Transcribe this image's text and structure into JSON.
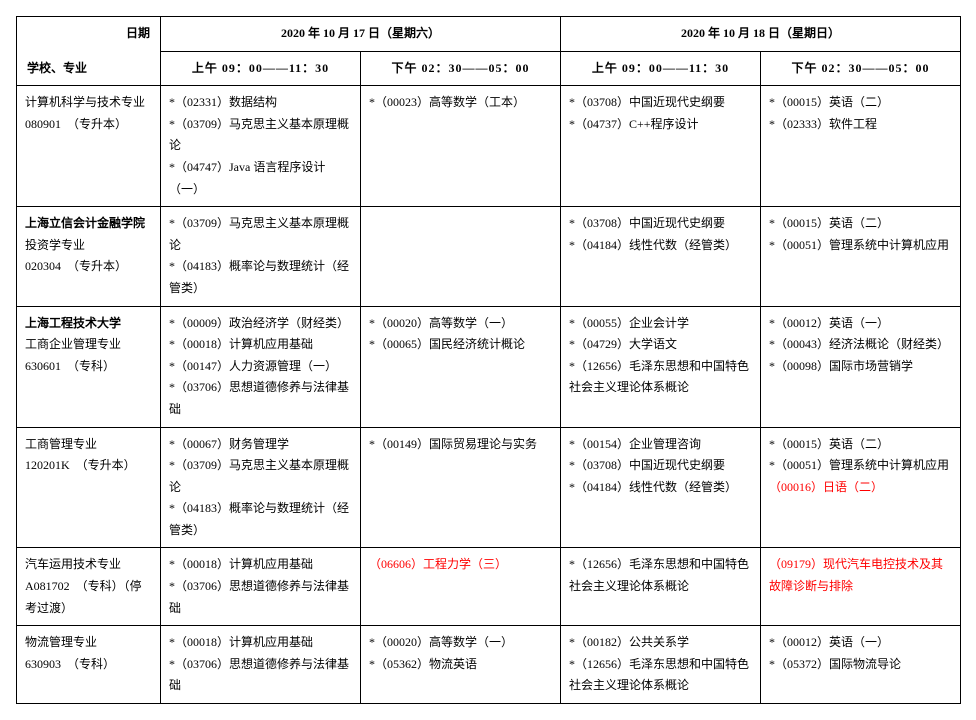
{
  "header": {
    "corner_top": "日期",
    "corner_bottom": "学校、专业",
    "day1": "2020 年 10 月 17 日（星期六）",
    "day2": "2020 年 10 月 18 日（星期日）",
    "slot1": "上午 09：00——11：30",
    "slot2": "下午 02：30——05：00",
    "slot3": "上午 09：00——11：30",
    "slot4": "下午 02：30——05：00"
  },
  "rows": [
    {
      "major": [
        {
          "text": "计算机科学与技术专业",
          "bold": false
        },
        {
          "text": "080901　（专升本）",
          "bold": false
        }
      ],
      "cells": [
        [
          {
            "text": "*（02331）数据结构"
          },
          {
            "text": "*（03709）马克思主义基本原理概论"
          },
          {
            "text": "*（04747）Java 语言程序设计（一）"
          }
        ],
        [
          {
            "text": "*（00023）高等数学（工本）"
          }
        ],
        [
          {
            "text": "*（03708）中国近现代史纲要"
          },
          {
            "text": "*（04737）C++程序设计"
          }
        ],
        [
          {
            "text": "*（00015）英语（二）"
          },
          {
            "text": "*（02333）软件工程"
          }
        ]
      ]
    },
    {
      "major": [
        {
          "text": "上海立信会计金融学院",
          "bold": true
        },
        {
          "text": "投资学专业",
          "bold": false
        },
        {
          "text": "020304　（专升本）",
          "bold": false
        }
      ],
      "cells": [
        [
          {
            "text": "*（03709）马克思主义基本原理概论"
          },
          {
            "text": "*（04183）概率论与数理统计（经管类）"
          }
        ],
        [],
        [
          {
            "text": "*（03708）中国近现代史纲要"
          },
          {
            "text": "*（04184）线性代数（经管类）"
          }
        ],
        [
          {
            "text": "*（00015）英语（二）"
          },
          {
            "text": "*（00051）管理系统中计算机应用"
          }
        ]
      ]
    },
    {
      "major": [
        {
          "text": "上海工程技术大学",
          "bold": true
        },
        {
          "text": "工商企业管理专业",
          "bold": false
        },
        {
          "text": "630601　（专科）",
          "bold": false
        }
      ],
      "cells": [
        [
          {
            "text": "*（00009）政治经济学（财经类）"
          },
          {
            "text": "*（00018）计算机应用基础"
          },
          {
            "text": "*（00147）人力资源管理（一）"
          },
          {
            "text": "*（03706）思想道德修养与法律基础"
          }
        ],
        [
          {
            "text": "*（00020）高等数学（一）"
          },
          {
            "text": "*（00065）国民经济统计概论"
          }
        ],
        [
          {
            "text": "*（00055）企业会计学"
          },
          {
            "text": "*（04729）大学语文"
          },
          {
            "text": "*（12656）毛泽东思想和中国特色社会主义理论体系概论"
          }
        ],
        [
          {
            "text": "*（00012）英语（一）"
          },
          {
            "text": "*（00043）经济法概论（财经类）"
          },
          {
            "text": "*（00098）国际市场营销学"
          }
        ]
      ]
    },
    {
      "major": [
        {
          "text": "工商管理专业",
          "bold": false
        },
        {
          "text": "120201K　（专升本）",
          "bold": false
        }
      ],
      "cells": [
        [
          {
            "text": "*（00067）财务管理学"
          },
          {
            "text": "*（03709）马克思主义基本原理概论"
          },
          {
            "text": "*（04183）概率论与数理统计（经管类）"
          }
        ],
        [
          {
            "text": "*（00149）国际贸易理论与实务"
          }
        ],
        [
          {
            "text": "*（00154）企业管理咨询"
          },
          {
            "text": "*（03708）中国近现代史纲要"
          },
          {
            "text": "*（04184）线性代数（经管类）"
          }
        ],
        [
          {
            "text": "*（00015）英语（二）"
          },
          {
            "text": "*（00051）管理系统中计算机应用"
          },
          {
            "text": "（00016）日语（二）",
            "red": true
          }
        ]
      ]
    },
    {
      "major": [
        {
          "text": "汽车运用技术专业",
          "bold": false
        },
        {
          "text": "A081702　（专科）（停考过渡）",
          "bold": false
        }
      ],
      "cells": [
        [
          {
            "text": "*（00018）计算机应用基础"
          },
          {
            "text": "*（03706）思想道德修养与法律基础"
          }
        ],
        [
          {
            "text": "（06606）工程力学（三）",
            "red": true
          }
        ],
        [
          {
            "text": "*（12656）毛泽东思想和中国特色社会主义理论体系概论"
          }
        ],
        [
          {
            "text": "（09179）现代汽车电控技术及其故障诊断与排除",
            "red": true
          }
        ]
      ]
    },
    {
      "major": [
        {
          "text": "物流管理专业",
          "bold": false
        },
        {
          "text": "630903　（专科）",
          "bold": false
        }
      ],
      "cells": [
        [
          {
            "text": "*（00018）计算机应用基础"
          },
          {
            "text": "*（03706）思想道德修养与法律基础"
          }
        ],
        [
          {
            "text": "*（00020）高等数学（一）"
          },
          {
            "text": "*（05362）物流英语"
          }
        ],
        [
          {
            "text": "*（00182）公共关系学"
          },
          {
            "text": "*（12656）毛泽东思想和中国特色社会主义理论体系概论"
          }
        ],
        [
          {
            "text": "*（00012）英语（一）"
          },
          {
            "text": "*（05372）国际物流导论"
          }
        ]
      ]
    }
  ]
}
